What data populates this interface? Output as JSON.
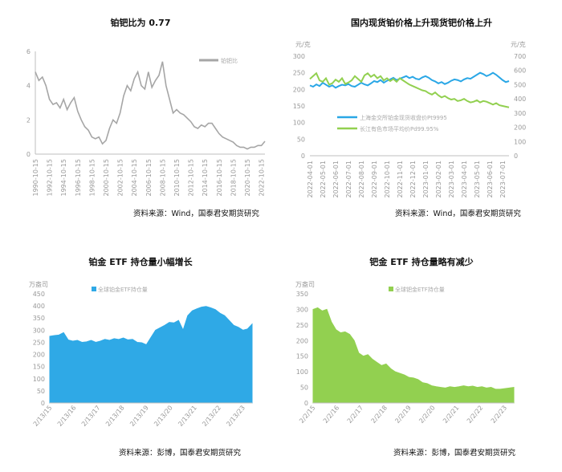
{
  "charts": [
    {
      "title": "铂钯比为 0.77",
      "source": "资料来源：Wind，国泰君安期货研究",
      "chart_data": {
        "type": "line",
        "ylim": [
          0,
          6
        ],
        "yticks": [
          "0",
          "2",
          "4",
          "6"
        ],
        "xticks": [
          "1990-10-15",
          "1992-10-15",
          "1994-10-15",
          "1996-10-15",
          "1998-10-15",
          "2000-10-15",
          "2002-10-15",
          "2004-10-15",
          "2006-10-15",
          "2008-10-15",
          "2010-10-15",
          "2012-10-15",
          "2014-10-15",
          "2016-10-15",
          "2018-10-15",
          "2020-10-15",
          "2022-10-15"
        ],
        "legend": "铂钯比",
        "series": [
          {
            "name": "铂钯比",
            "color": "#a6a6a6",
            "x": [
              1990.8,
              1991.3,
              1991.8,
              1992.3,
              1992.8,
              1993.3,
              1993.8,
              1994.3,
              1994.8,
              1995.3,
              1995.8,
              1996.3,
              1996.8,
              1997.3,
              1997.8,
              1998.3,
              1998.8,
              1999.3,
              1999.8,
              2000.3,
              2000.8,
              2001.3,
              2001.8,
              2002.3,
              2002.8,
              2003.3,
              2003.8,
              2004.3,
              2004.8,
              2005.3,
              2005.8,
              2006.3,
              2006.8,
              2007.3,
              2007.8,
              2008.3,
              2008.8,
              2009.3,
              2009.8,
              2010.3,
              2010.8,
              2011.3,
              2011.8,
              2012.3,
              2012.8,
              2013.3,
              2013.8,
              2014.3,
              2014.8,
              2015.3,
              2015.8,
              2016.3,
              2016.8,
              2017.3,
              2017.8,
              2018.3,
              2018.8,
              2019.3,
              2019.8,
              2020.3,
              2020.8,
              2021.3,
              2021.8,
              2022.3,
              2022.8,
              2023.3
            ],
            "y": [
              4.8,
              4.3,
              4.5,
              4.0,
              3.2,
              2.9,
              3.0,
              2.7,
              3.2,
              2.6,
              3.0,
              3.3,
              2.5,
              2.0,
              1.6,
              1.4,
              1.0,
              0.9,
              1.0,
              0.6,
              0.8,
              1.5,
              2.0,
              1.8,
              2.4,
              3.4,
              4.0,
              3.7,
              4.4,
              4.8,
              4.0,
              3.8,
              4.8,
              3.9,
              4.3,
              4.6,
              5.4,
              4.0,
              3.2,
              2.4,
              2.6,
              2.4,
              2.3,
              2.1,
              1.9,
              1.6,
              1.5,
              1.7,
              1.6,
              1.8,
              1.8,
              1.5,
              1.2,
              1.0,
              0.9,
              0.8,
              0.7,
              0.5,
              0.4,
              0.4,
              0.3,
              0.4,
              0.4,
              0.5,
              0.5,
              0.75
            ]
          }
        ]
      }
    },
    {
      "title": "国内现货铂价格上升现货钯价格上升",
      "source": "资料来源：Wind，国泰君安期货研究",
      "chart_data": {
        "type": "line",
        "ylabel_left": "元/克",
        "ylabel_right": "元/克",
        "ylim_left": [
          0,
          300
        ],
        "ylim_right": [
          0,
          700
        ],
        "yticks_left": [
          "0",
          "50",
          "100",
          "150",
          "200",
          "250",
          "300"
        ],
        "yticks_right": [
          "0",
          "100",
          "200",
          "300",
          "400",
          "500",
          "600",
          "700"
        ],
        "xticks": [
          "2022-04-01",
          "2022-05-01",
          "2022-06-01",
          "2022-07-01",
          "2022-08-01",
          "2022-09-01",
          "2022-10-01",
          "2022-11-01",
          "2022-12-01",
          "2023-01-01",
          "2023-02-01",
          "2023-03-01",
          "2023-04-01",
          "2023-05-01",
          "2023-06-01",
          "2023-07-01"
        ],
        "series": [
          {
            "name": "上海金交所铂金现货收盘价Pt9995",
            "color": "#2aa7e6",
            "axis": "left",
            "x": [
              0,
              0.25,
              0.5,
              0.75,
              1,
              1.25,
              1.5,
              1.75,
              2,
              2.25,
              2.5,
              2.75,
              3,
              3.25,
              3.5,
              3.75,
              4,
              4.25,
              4.5,
              4.75,
              5,
              5.25,
              5.5,
              5.75,
              6,
              6.25,
              6.5,
              6.75,
              7,
              7.25,
              7.5,
              7.75,
              8,
              8.25,
              8.5,
              8.75,
              9,
              9.25,
              9.5,
              9.75,
              10,
              10.25,
              10.5,
              10.75,
              11,
              11.25,
              11.5,
              11.75,
              12,
              12.25,
              12.5,
              12.75,
              13,
              13.25,
              13.5,
              13.75,
              14,
              14.25,
              14.5,
              14.75,
              15,
              15.25,
              15.5
            ],
            "y": [
              212,
              208,
              215,
              210,
              220,
              214,
              208,
              212,
              205,
              210,
              214,
              212,
              216,
              210,
              208,
              214,
              220,
              215,
              212,
              218,
              225,
              222,
              228,
              220,
              226,
              230,
              235,
              228,
              232,
              236,
              240,
              234,
              238,
              232,
              230,
              236,
              240,
              235,
              228,
              224,
              218,
              222,
              216,
              220,
              226,
              230,
              228,
              224,
              230,
              234,
              232,
              238,
              244,
              250,
              246,
              240,
              244,
              250,
              244,
              236,
              228,
              222,
              225
            ]
          },
          {
            "name": "长江有色市场平均价Pd99.95%",
            "color": "#92d050",
            "axis": "right",
            "x": [
              0,
              0.25,
              0.5,
              0.75,
              1,
              1.25,
              1.5,
              1.75,
              2,
              2.25,
              2.5,
              2.75,
              3,
              3.25,
              3.5,
              3.75,
              4,
              4.25,
              4.5,
              4.75,
              5,
              5.25,
              5.5,
              5.75,
              6,
              6.25,
              6.5,
              6.75,
              7,
              7.25,
              7.5,
              7.75,
              8,
              8.25,
              8.5,
              8.75,
              9,
              9.25,
              9.5,
              9.75,
              10,
              10.25,
              10.5,
              10.75,
              11,
              11.25,
              11.5,
              11.75,
              12,
              12.25,
              12.5,
              12.75,
              13,
              13.25,
              13.5,
              13.75,
              14,
              14.25,
              14.5,
              14.75,
              15,
              15.25,
              15.5
            ],
            "y": [
              540,
              560,
              580,
              530,
              520,
              545,
              500,
              510,
              535,
              520,
              545,
              505,
              515,
              530,
              560,
              540,
              520,
              565,
              580,
              555,
              570,
              545,
              560,
              530,
              545,
              525,
              540,
              520,
              545,
              530,
              515,
              500,
              490,
              480,
              470,
              460,
              455,
              440,
              430,
              445,
              425,
              410,
              420,
              405,
              395,
              400,
              385,
              390,
              400,
              385,
              375,
              380,
              390,
              375,
              385,
              380,
              370,
              360,
              370,
              355,
              350,
              345,
              340
            ]
          }
        ]
      }
    },
    {
      "title": "铂金 ETF 持仓量小幅增长",
      "source": "资料来源：彭博，国泰君安期货研究",
      "chart_data": {
        "type": "area",
        "ylabel": "万盎司",
        "ylim": [
          0,
          450
        ],
        "yticks": [
          "0",
          "50",
          "100",
          "150",
          "200",
          "250",
          "300",
          "350",
          "400",
          "450"
        ],
        "xticks": [
          "2/13/15",
          "2/13/16",
          "2/13/17",
          "2/13/18",
          "2/13/19",
          "2/13/20",
          "2/13/21",
          "2/13/22",
          "2/13/23"
        ],
        "legend": "全球铂金ETF持仓量",
        "series": [
          {
            "name": "全球铂金ETF持仓量",
            "color": "#2fa9e6",
            "x": [
              0,
              0.2,
              0.4,
              0.6,
              0.8,
              1.0,
              1.2,
              1.4,
              1.6,
              1.8,
              2.0,
              2.2,
              2.4,
              2.6,
              2.8,
              3.0,
              3.2,
              3.4,
              3.6,
              3.8,
              4.0,
              4.2,
              4.4,
              4.6,
              4.8,
              5.0,
              5.2,
              5.4,
              5.6,
              5.8,
              6.0,
              6.2,
              6.4,
              6.6,
              6.8,
              7.0,
              7.2,
              7.4,
              7.6,
              7.8,
              8.0,
              8.2,
              8.4,
              8.6,
              8.8
            ],
            "y": [
              275,
              278,
              280,
              290,
              260,
              255,
              258,
              250,
              252,
              258,
              250,
              255,
              262,
              258,
              265,
              262,
              268,
              260,
              262,
              250,
              248,
              240,
              270,
              300,
              310,
              320,
              332,
              330,
              340,
              300,
              360,
              380,
              388,
              395,
              398,
              392,
              385,
              370,
              360,
              340,
              320,
              312,
              300,
              305,
              325
            ]
          }
        ]
      }
    },
    {
      "title": "钯金 ETF 持仓量略有减少",
      "source": "资料来源：彭博，国泰君安期货研究",
      "chart_data": {
        "type": "area",
        "ylabel": "万盎司",
        "ylim": [
          0,
          350
        ],
        "yticks": [
          "0",
          "50",
          "100",
          "150",
          "200",
          "250",
          "300",
          "350"
        ],
        "xticks": [
          "2/2/15",
          "2/2/16",
          "2/2/17",
          "2/2/18",
          "2/2/19",
          "2/2/20",
          "2/2/21",
          "2/2/22",
          "2/2/23"
        ],
        "legend": "全球钯金ETF持仓量",
        "series": [
          {
            "name": "全球钯金ETF持仓量",
            "color": "#92d050",
            "x": [
              0,
              0.2,
              0.4,
              0.6,
              0.8,
              1.0,
              1.2,
              1.4,
              1.6,
              1.8,
              2.0,
              2.2,
              2.4,
              2.6,
              2.8,
              3.0,
              3.2,
              3.4,
              3.6,
              3.8,
              4.0,
              4.2,
              4.4,
              4.6,
              4.8,
              5.0,
              5.2,
              5.4,
              5.6,
              5.8,
              6.0,
              6.2,
              6.4,
              6.6,
              6.8,
              7.0,
              7.2,
              7.4,
              7.6,
              7.8,
              8.0,
              8.2,
              8.4,
              8.6,
              8.8
            ],
            "y": [
              300,
              305,
              295,
              300,
              260,
              235,
              225,
              228,
              220,
              200,
              160,
              150,
              155,
              140,
              130,
              120,
              125,
              110,
              100,
              95,
              90,
              82,
              80,
              75,
              65,
              62,
              55,
              52,
              50,
              48,
              52,
              50,
              52,
              55,
              52,
              54,
              50,
              52,
              48,
              50,
              44,
              44,
              46,
              48,
              50
            ]
          }
        ]
      }
    }
  ]
}
